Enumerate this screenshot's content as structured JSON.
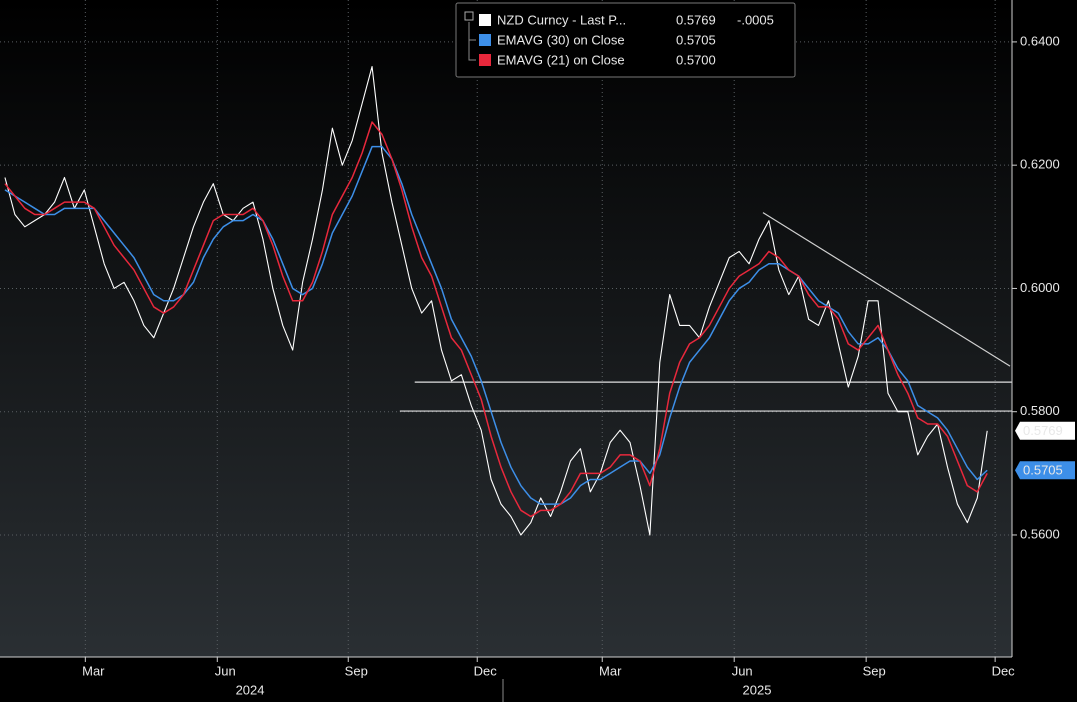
{
  "chart_data": {
    "type": "line",
    "xlim": [
      0,
      102
    ],
    "ylim": [
      0.5402,
      0.6468
    ],
    "yticks": [
      {
        "value": 0.56,
        "label": "0.5600"
      },
      {
        "value": 0.58,
        "label": "0.5800"
      },
      {
        "value": 0.6,
        "label": "0.6000"
      },
      {
        "value": 0.62,
        "label": "0.6200"
      },
      {
        "value": 0.64,
        "label": "0.6400"
      }
    ],
    "xticks": [
      {
        "value": 8.6,
        "label": "Mar"
      },
      {
        "value": 21.9,
        "label": "Jun"
      },
      {
        "value": 35.1,
        "label": "Sep"
      },
      {
        "value": 48.1,
        "label": "Dec"
      },
      {
        "value": 60.7,
        "label": "Mar"
      },
      {
        "value": 74,
        "label": "Jun"
      },
      {
        "value": 87.3,
        "label": "Sep"
      },
      {
        "value": 100.3,
        "label": "Dec"
      }
    ],
    "year_ticks": [
      {
        "value": 25.2,
        "label": "2024"
      },
      {
        "value": 76.3,
        "label": "2025"
      }
    ],
    "grid": true,
    "series": [
      {
        "name": "NZD Curncy - Last P...",
        "legend_value": "0.5769",
        "legend_change": "-.0005",
        "color": "#ffffff",
        "values": [
          0.618,
          0.612,
          0.61,
          0.611,
          0.612,
          0.614,
          0.618,
          0.613,
          0.616,
          0.61,
          0.604,
          0.6,
          0.601,
          0.598,
          0.594,
          0.592,
          0.596,
          0.6,
          0.605,
          0.61,
          0.614,
          0.617,
          0.612,
          0.611,
          0.613,
          0.614,
          0.608,
          0.6,
          0.594,
          0.59,
          0.601,
          0.608,
          0.616,
          0.626,
          0.62,
          0.624,
          0.63,
          0.636,
          0.622,
          0.614,
          0.607,
          0.6,
          0.596,
          0.598,
          0.59,
          0.585,
          0.586,
          0.581,
          0.577,
          0.569,
          0.565,
          0.563,
          0.56,
          0.562,
          0.566,
          0.563,
          0.567,
          0.572,
          0.574,
          0.567,
          0.57,
          0.575,
          0.577,
          0.575,
          0.568,
          0.56,
          0.588,
          0.599,
          0.594,
          0.594,
          0.592,
          0.597,
          0.601,
          0.605,
          0.606,
          0.604,
          0.608,
          0.611,
          0.603,
          0.599,
          0.602,
          0.595,
          0.594,
          0.598,
          0.591,
          0.584,
          0.589,
          0.598,
          0.598,
          0.583,
          0.58,
          0.58,
          0.573,
          0.576,
          0.578,
          0.571,
          0.565,
          0.562,
          0.566,
          0.5769
        ]
      },
      {
        "name": "EMAVG (30)  on Close",
        "legend_value": "0.5705",
        "color": "#3d8fe8",
        "values": [
          0.616,
          0.615,
          0.614,
          0.613,
          0.612,
          0.612,
          0.613,
          0.613,
          0.613,
          0.613,
          0.611,
          0.609,
          0.607,
          0.605,
          0.602,
          0.599,
          0.598,
          0.598,
          0.599,
          0.601,
          0.605,
          0.608,
          0.61,
          0.611,
          0.611,
          0.612,
          0.611,
          0.608,
          0.604,
          0.6,
          0.599,
          0.6,
          0.604,
          0.609,
          0.612,
          0.615,
          0.619,
          0.623,
          0.623,
          0.621,
          0.617,
          0.612,
          0.608,
          0.604,
          0.6,
          0.595,
          0.592,
          0.589,
          0.585,
          0.58,
          0.575,
          0.571,
          0.568,
          0.566,
          0.565,
          0.565,
          0.565,
          0.566,
          0.568,
          0.569,
          0.569,
          0.57,
          0.571,
          0.572,
          0.572,
          0.57,
          0.573,
          0.579,
          0.584,
          0.588,
          0.59,
          0.592,
          0.595,
          0.598,
          0.6,
          0.601,
          0.603,
          0.604,
          0.604,
          0.603,
          0.602,
          0.6,
          0.598,
          0.597,
          0.596,
          0.593,
          0.591,
          0.591,
          0.592,
          0.59,
          0.587,
          0.585,
          0.581,
          0.58,
          0.579,
          0.577,
          0.574,
          0.571,
          0.569,
          0.5705
        ]
      },
      {
        "name": "EMAVG (21)  on Close",
        "legend_value": "0.5700",
        "color": "#e8283c",
        "values": [
          0.617,
          0.615,
          0.613,
          0.612,
          0.612,
          0.613,
          0.614,
          0.614,
          0.614,
          0.613,
          0.61,
          0.607,
          0.605,
          0.603,
          0.6,
          0.597,
          0.596,
          0.597,
          0.599,
          0.603,
          0.607,
          0.611,
          0.612,
          0.612,
          0.612,
          0.613,
          0.611,
          0.607,
          0.602,
          0.598,
          0.598,
          0.601,
          0.606,
          0.612,
          0.615,
          0.618,
          0.622,
          0.627,
          0.625,
          0.621,
          0.616,
          0.61,
          0.605,
          0.602,
          0.597,
          0.592,
          0.59,
          0.586,
          0.582,
          0.576,
          0.571,
          0.567,
          0.564,
          0.563,
          0.564,
          0.564,
          0.565,
          0.567,
          0.57,
          0.57,
          0.57,
          0.571,
          0.573,
          0.573,
          0.572,
          0.568,
          0.574,
          0.583,
          0.588,
          0.591,
          0.592,
          0.594,
          0.597,
          0.6,
          0.602,
          0.603,
          0.604,
          0.606,
          0.605,
          0.603,
          0.602,
          0.599,
          0.597,
          0.597,
          0.595,
          0.591,
          0.59,
          0.592,
          0.594,
          0.59,
          0.586,
          0.583,
          0.579,
          0.578,
          0.578,
          0.576,
          0.572,
          0.568,
          0.567,
          0.57
        ]
      }
    ],
    "lines": [
      {
        "x": [
          41.8,
          102
        ],
        "y": [
          0.5848,
          0.5848
        ],
        "color": "#e0e0e0"
      },
      {
        "x": [
          40.3,
          102
        ],
        "y": [
          0.5801,
          0.5801
        ],
        "color": "#e0e0e0"
      },
      {
        "x": [
          76.9,
          101.8
        ],
        "y": [
          0.6123,
          0.5874
        ],
        "color": "#d0d0d0"
      }
    ]
  }
}
